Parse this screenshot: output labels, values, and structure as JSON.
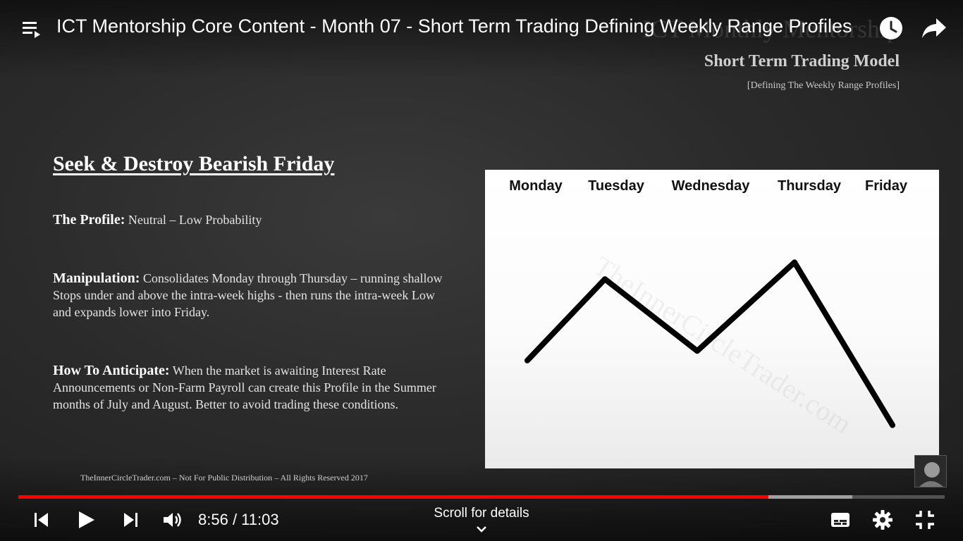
{
  "header": {
    "title": "ICT Mentorship Core Content - Month 07 - Short Term Trading Defining Weekly Range Profiles",
    "playlist_icon": "playlist-icon",
    "watch_later_icon": "clock-icon",
    "share_icon": "share-arrow-icon"
  },
  "slide": {
    "brand_ghost": "ICT Monthly Mentorship",
    "subtitle": "Short Term Trading Model",
    "tagline": "[Defining The Weekly Range Profiles]",
    "heading": "Seek & Destroy Bearish Friday",
    "profile": {
      "label": "The Profile:",
      "text": "Neutral – Low Probability"
    },
    "manipulation": {
      "label": "Manipulation:",
      "text": "Consolidates Monday through Thursday – running shallow Stops under and above the intra-week highs - then runs the intra-week Low and expands lower into Friday."
    },
    "anticipate": {
      "label": "How To Anticipate:",
      "text": "When the market is awaiting Interest Rate Announcements or Non-Farm Payroll can create this Profile in the Summer months of July and August.  Better to avoid trading these conditions."
    },
    "footer": "TheInnerCircleTrader.com – Not For Public Distribution – All Rights Reserved 2017",
    "chart_watermark": "TheInnerCircleTrader.com"
  },
  "chart_data": {
    "type": "line",
    "categories": [
      "Monday",
      "Tuesday",
      "Wednesday",
      "Thursday",
      "Friday"
    ],
    "x": [
      0,
      1,
      2,
      3,
      4
    ],
    "values": [
      0.38,
      0.72,
      0.42,
      0.79,
      0.11
    ],
    "line_color": "#000000",
    "ylim": [
      0,
      1
    ],
    "grid": false
  },
  "player": {
    "current_time": "8:56",
    "separator": " / ",
    "duration": "11:03",
    "played_fraction": 0.81,
    "buffered_fraction": 0.9,
    "scroll_hint": "Scroll for details",
    "accent_color": "#ff0000",
    "icons": [
      "previous-icon",
      "play-icon",
      "next-icon",
      "volume-icon",
      "subtitles-icon",
      "settings-gear-icon",
      "exit-fullscreen-icon"
    ]
  }
}
